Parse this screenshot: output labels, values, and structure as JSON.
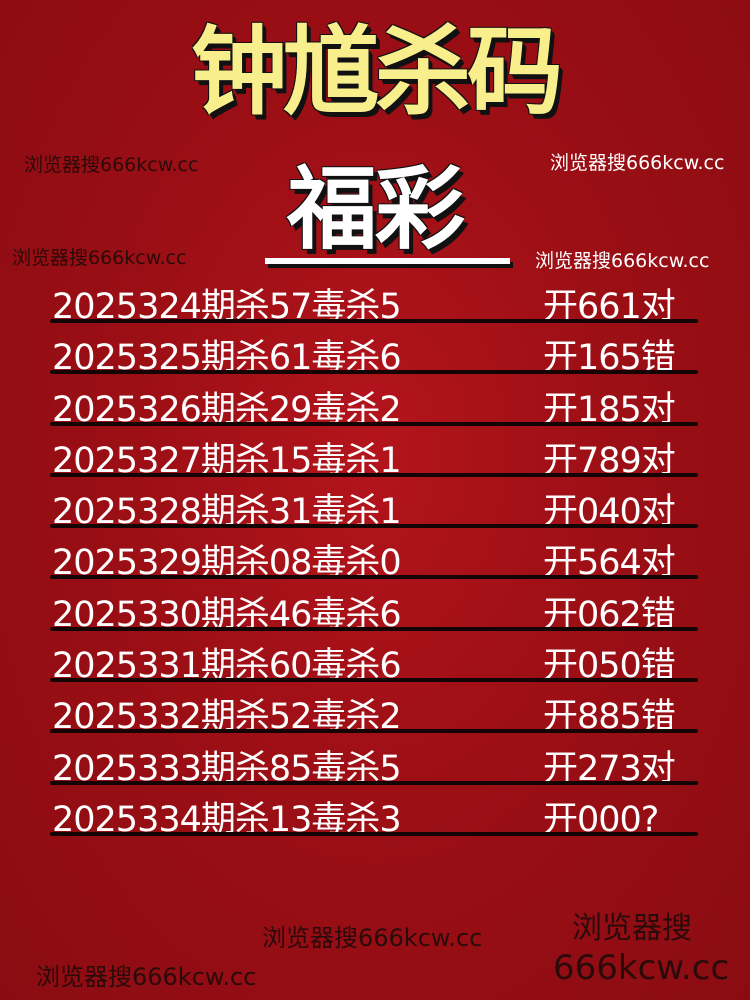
{
  "title": "钟馗杀码",
  "subtitle": "福彩",
  "watermarks": [
    "浏览器搜666kcw.cc",
    "浏览器搜666kcw.cc",
    "浏览器搜666kcw.cc",
    "浏览器搜666kcw.cc",
    "浏览器搜666kcw.cc",
    "浏览器搜666kcw.cc",
    "浏览器搜",
    "666kcw.cc"
  ],
  "rows": [
    {
      "left": "2025324期杀57毒杀5",
      "right": "开661对"
    },
    {
      "left": "2025325期杀61毒杀6",
      "right": "开165错"
    },
    {
      "left": "2025326期杀29毒杀2",
      "right": "开185对"
    },
    {
      "left": "2025327期杀15毒杀1",
      "right": "开789对"
    },
    {
      "left": "2025328期杀31毒杀1",
      "right": "开040对"
    },
    {
      "left": "2025329期杀08毒杀0",
      "right": "开564对"
    },
    {
      "left": "2025330期杀46毒杀6",
      "right": "开062错"
    },
    {
      "left": "2025331期杀60毒杀6",
      "right": "开050错"
    },
    {
      "left": "2025332期杀52毒杀2",
      "right": "开885错"
    },
    {
      "left": "2025333期杀85毒杀5",
      "right": "开273对"
    },
    {
      "left": "2025334期杀13毒杀3",
      "right": "开000?"
    }
  ],
  "colors": {
    "background": "#9c0f15",
    "title": "#f8ef8c",
    "text": "#ffffff"
  }
}
